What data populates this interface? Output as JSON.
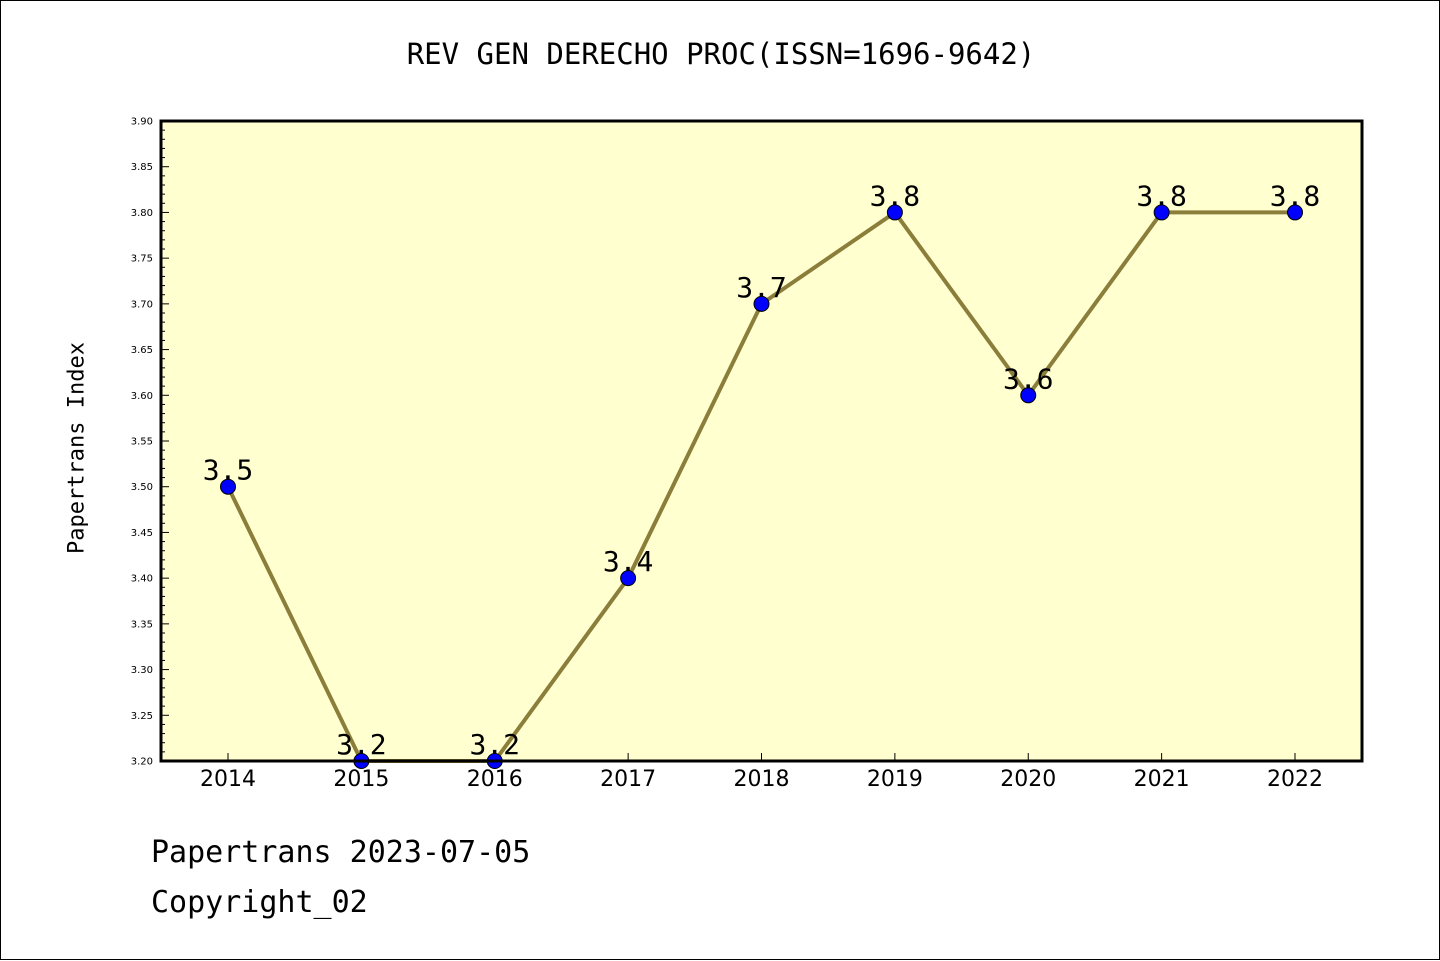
{
  "chart_data": {
    "type": "line",
    "title": "REV GEN DERECHO PROC(ISSN=1696-9642)",
    "xlabel": "",
    "ylabel": "Papertrans Index",
    "categories": [
      "2014",
      "2015",
      "2016",
      "2017",
      "2018",
      "2019",
      "2020",
      "2021",
      "2022"
    ],
    "values": [
      3.5,
      3.2,
      3.2,
      3.4,
      3.7,
      3.8,
      3.6,
      3.8,
      3.8
    ],
    "data_labels": [
      "3.5",
      "3.2",
      "3.2",
      "3.4",
      "3.7",
      "3.8",
      "3.6",
      "3.8",
      "3.8"
    ],
    "ylim": [
      3.2,
      3.9
    ],
    "yticks": [
      "3.20",
      "3.25",
      "3.30",
      "3.35",
      "3.40",
      "3.45",
      "3.50",
      "3.55",
      "3.60",
      "3.65",
      "3.70",
      "3.75",
      "3.80",
      "3.85",
      "3.90"
    ],
    "grid": false,
    "legend": "none",
    "colors": {
      "plot_background": "#ffffd0",
      "line": "#8b7d3a",
      "marker": "#0000ff"
    }
  },
  "footer": {
    "date_line": "Papertrans 2023-07-05",
    "copyright_line": "Copyright_02"
  }
}
